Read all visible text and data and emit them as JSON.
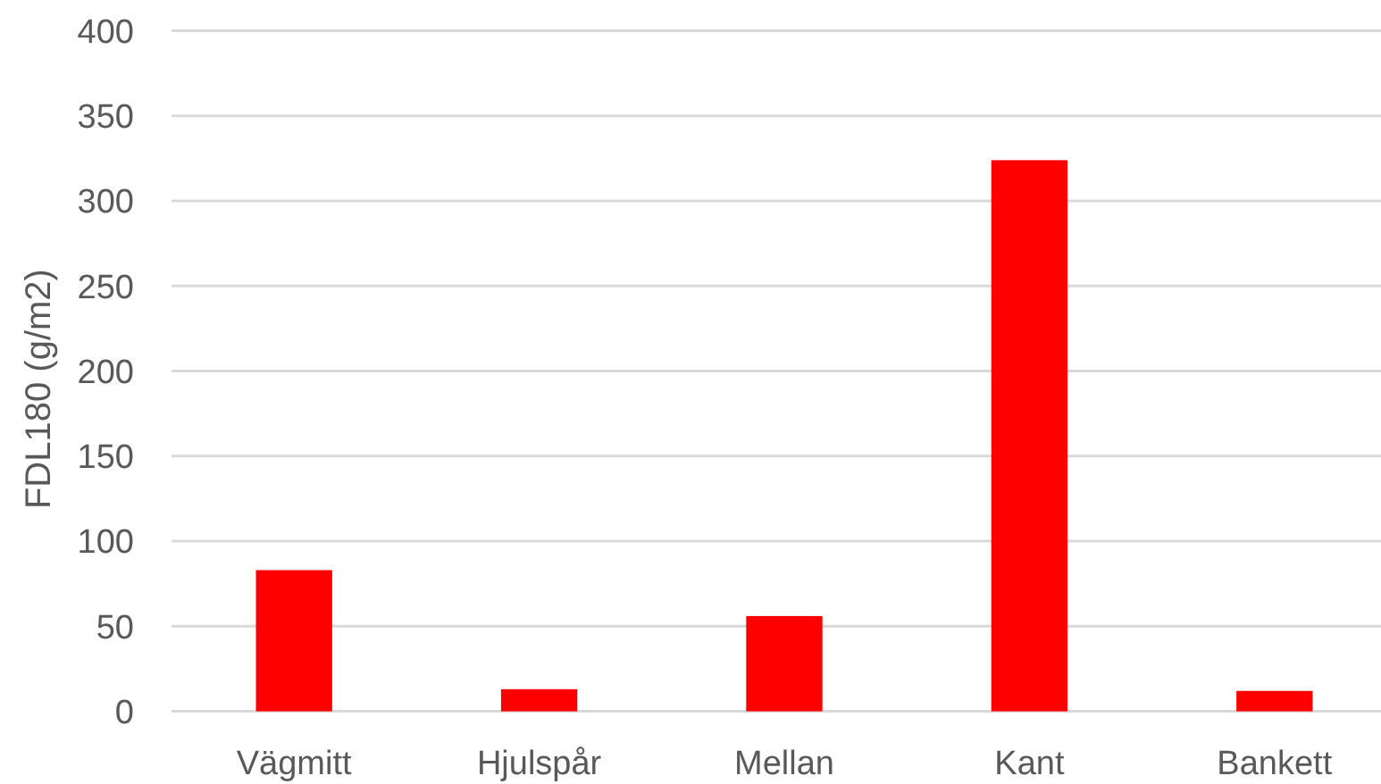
{
  "chart_data": {
    "type": "bar",
    "ylabel": "FDL180 (g/m2)",
    "categories": [
      "Vägmitt",
      "Hjulspår",
      "Mellan",
      "Kant",
      "Bankett"
    ],
    "values": [
      83,
      13,
      56,
      324,
      12
    ],
    "color": "#ff0000",
    "ylim": [
      0,
      400
    ],
    "yticks": [
      0,
      50,
      100,
      150,
      200,
      250,
      300,
      350,
      400
    ],
    "grid": "y"
  }
}
